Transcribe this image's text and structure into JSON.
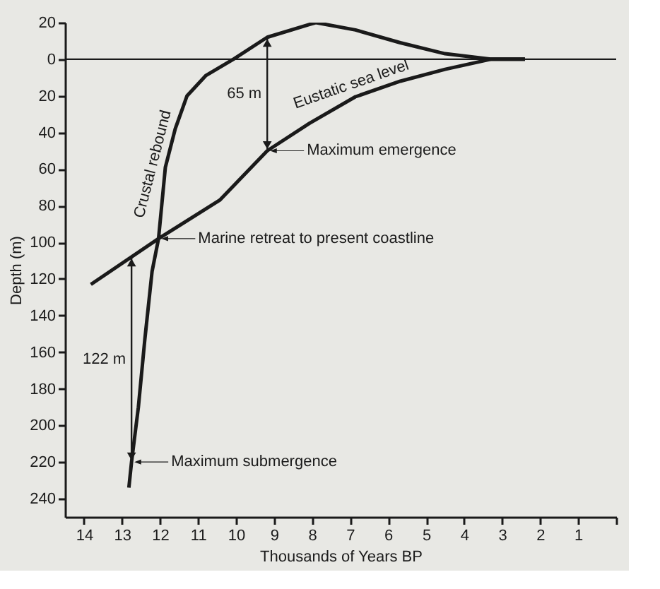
{
  "chart_data": {
    "type": "line",
    "xlabel": "Thousands of Years BP",
    "ylabel": "Depth (m)",
    "xlim": [
      14.5,
      0
    ],
    "xticks": [
      14,
      13,
      12,
      11,
      10,
      9,
      8,
      7,
      6,
      5,
      4,
      3,
      2,
      1,
      {
        "value": 0,
        "label": null
      }
    ],
    "ylim": [
      250,
      -20
    ],
    "yticks": [
      {
        "value": -20,
        "label": "20"
      },
      0,
      20,
      40,
      60,
      80,
      100,
      120,
      140,
      160,
      180,
      200,
      220,
      240
    ],
    "series": [
      {
        "name": "Crustal rebound",
        "color": "#1a1a1a",
        "x": [
          12.82,
          12.75,
          12.57,
          12.4,
          12.21,
          12.04,
          11.86,
          11.6,
          11.29,
          10.8,
          10.07,
          9.18,
          8.07,
          7.9,
          6.86,
          5.68,
          4.5,
          3.3,
          2.4
        ],
        "values": [
          234,
          220,
          190,
          153,
          116,
          98,
          59,
          38,
          20,
          9,
          0,
          -12,
          -19,
          -20,
          -16,
          -9,
          -3,
          0,
          0
        ]
      },
      {
        "name": "Eustatic sea level",
        "color": "#1a1a1a",
        "x": [
          13.82,
          12.04,
          10.43,
          9.18,
          8.07,
          6.86,
          5.68,
          4.5,
          3.3,
          2.4
        ],
        "values": [
          123,
          98,
          77,
          50,
          35,
          20.5,
          12,
          5.5,
          0,
          0
        ]
      }
    ],
    "ref_lines": [
      {
        "axis": "y",
        "value": 0,
        "label": null
      }
    ],
    "annotations": [
      "65 m",
      {
        "text": "Maximum emergence",
        "x": 9.18,
        "y": 50
      },
      {
        "text": "Marine retreat to present coastline",
        "x": 12.04,
        "y": 98
      },
      "122 m",
      {
        "text": "Maximum submergence",
        "x": 12.75,
        "y": 220
      }
    ]
  }
}
